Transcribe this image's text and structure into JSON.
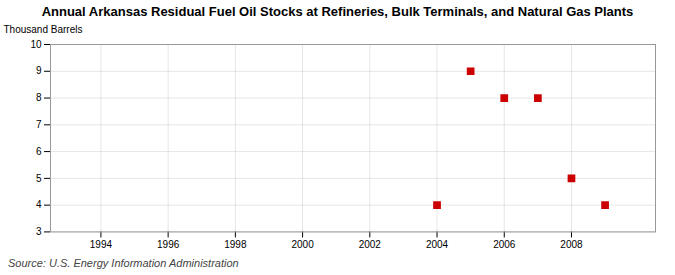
{
  "chart_data": {
    "type": "scatter",
    "title": "Annual Arkansas Residual Fuel Oil Stocks at Refineries, Bulk Terminals, and Natural Gas Plants",
    "ylabel": "Thousand Barrels",
    "annotations": [
      "Source: U.S. Energy Information Administration"
    ],
    "x": [
      2004,
      2005,
      2006,
      2007,
      2008,
      2009
    ],
    "values": [
      4,
      9,
      8,
      8,
      5,
      4
    ],
    "color": "#cc0000",
    "marker": "square",
    "xlim": [
      1992.5,
      2010.5
    ],
    "xticks": [
      1994,
      1996,
      1998,
      2000,
      2002,
      2004,
      2006,
      2008
    ],
    "ylim": [
      3,
      10
    ],
    "yticks": [
      3,
      4,
      5,
      6,
      7,
      8,
      9,
      10
    ],
    "grid": true
  }
}
